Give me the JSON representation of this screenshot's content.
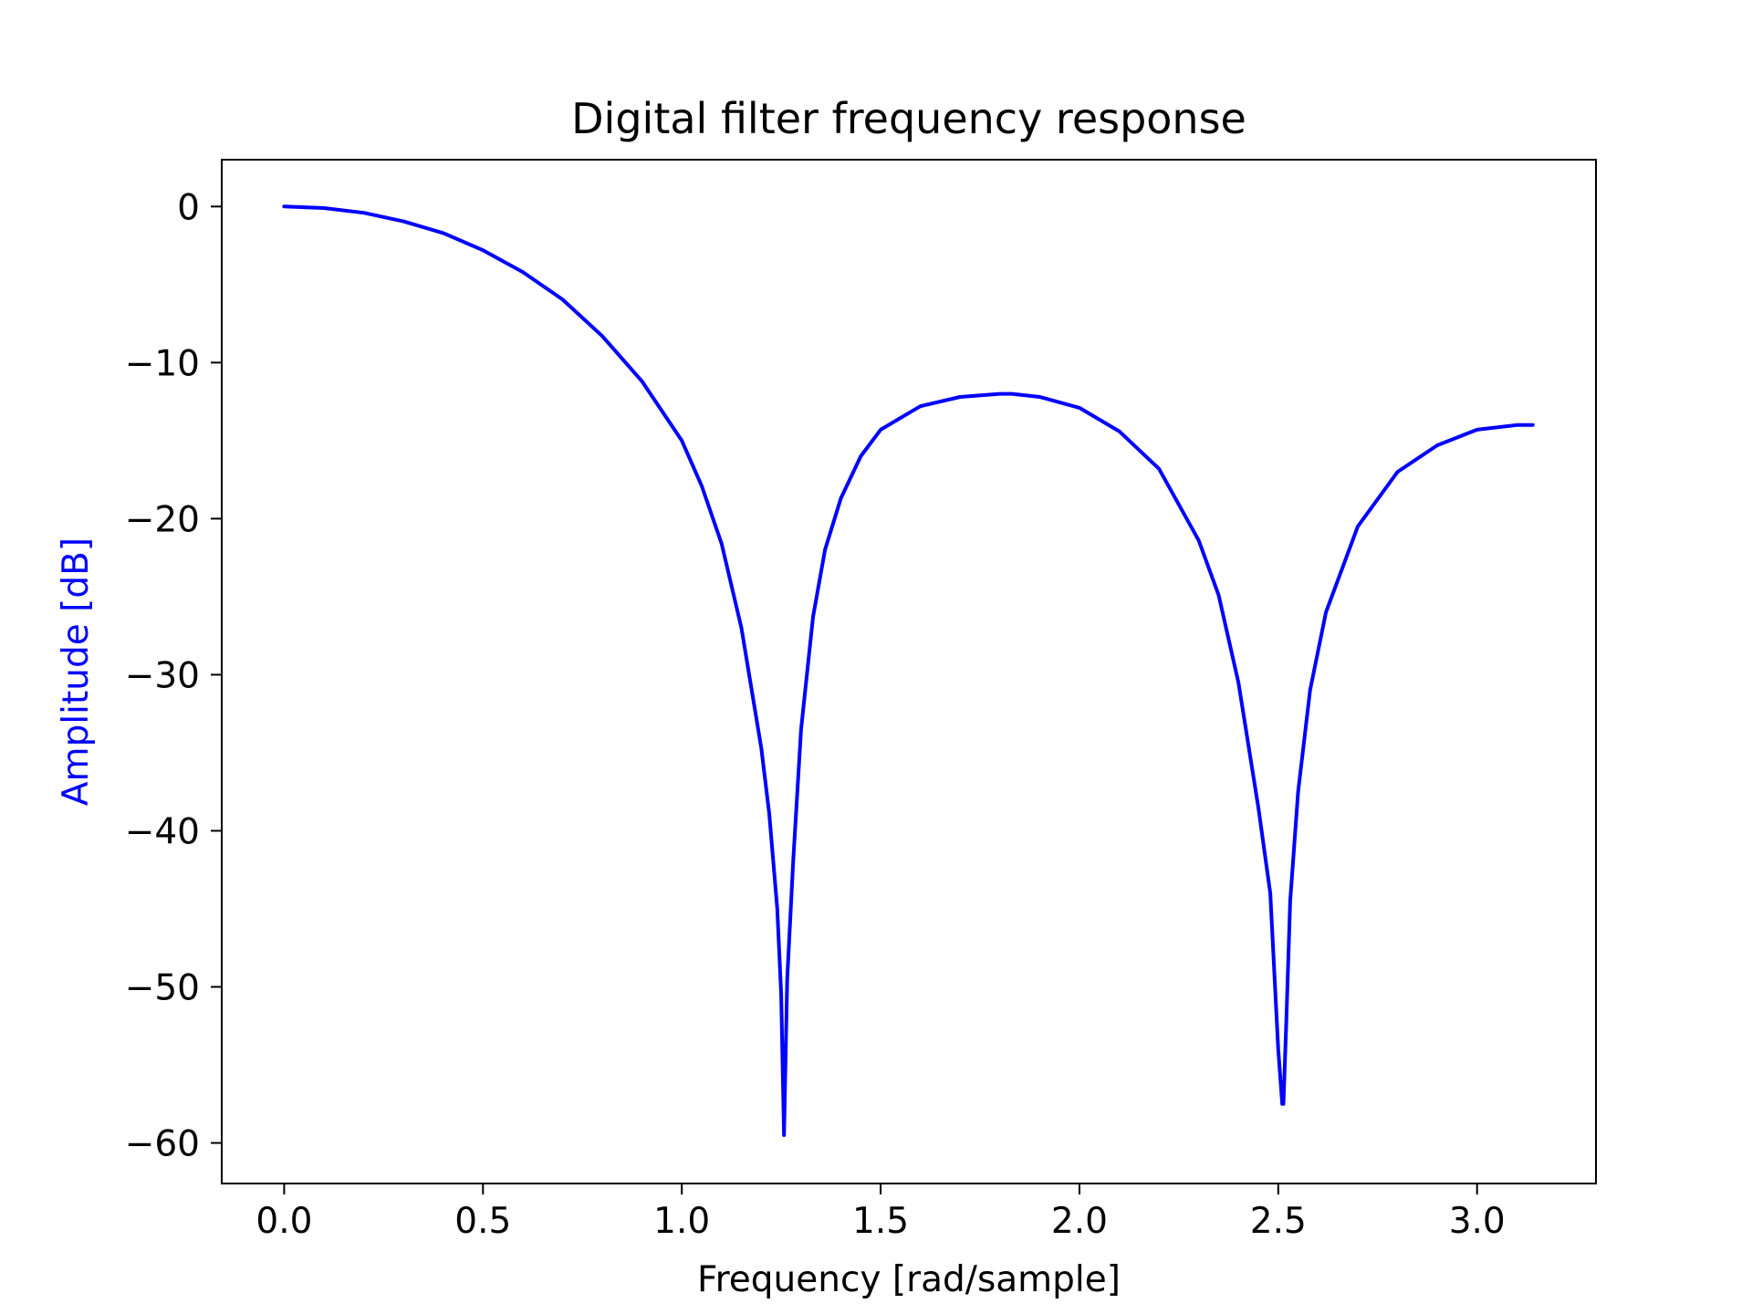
{
  "chart_data": {
    "type": "line",
    "title": "Digital filter frequency response",
    "xlabel": "Frequency [rad/sample]",
    "ylabel": "Amplitude [dB]",
    "ylabel_color": "#0000ff",
    "xlim": [
      -0.157,
      3.299
    ],
    "ylim": [
      -62.6,
      3.0
    ],
    "xticks": [
      0.0,
      0.5,
      1.0,
      1.5,
      2.0,
      2.5,
      3.0
    ],
    "xtick_labels": [
      "0.0",
      "0.5",
      "1.0",
      "1.5",
      "2.0",
      "2.5",
      "3.0"
    ],
    "yticks": [
      0,
      -10,
      -20,
      -30,
      -40,
      -50,
      -60
    ],
    "ytick_labels": [
      "0",
      "−10",
      "−20",
      "−30",
      "−40",
      "−50",
      "−60"
    ],
    "grid": false,
    "series": [
      {
        "color": "#0000ff",
        "x": [
          0.0,
          0.1,
          0.2,
          0.3,
          0.4,
          0.5,
          0.6,
          0.7,
          0.8,
          0.9,
          1.0,
          1.05,
          1.1,
          1.15,
          1.2,
          1.22,
          1.24,
          1.25,
          1.257,
          1.265,
          1.28,
          1.3,
          1.33,
          1.36,
          1.4,
          1.45,
          1.5,
          1.6,
          1.7,
          1.8,
          1.83,
          1.9,
          2.0,
          2.1,
          2.2,
          2.3,
          2.35,
          2.4,
          2.45,
          2.48,
          2.5,
          2.51,
          2.513,
          2.52,
          2.53,
          2.55,
          2.58,
          2.62,
          2.7,
          2.8,
          2.9,
          3.0,
          3.1,
          3.14
        ],
        "y": [
          0.0,
          -0.1,
          -0.4,
          -0.95,
          -1.7,
          -2.8,
          -4.2,
          -5.95,
          -8.3,
          -11.2,
          -15.0,
          -17.9,
          -21.6,
          -27.0,
          -34.7,
          -38.9,
          -45.0,
          -50.5,
          -59.5,
          -49.5,
          -42.0,
          -33.5,
          -26.3,
          -22.0,
          -18.7,
          -16.0,
          -14.3,
          -12.8,
          -12.2,
          -12.0,
          -12.0,
          -12.2,
          -12.9,
          -14.4,
          -16.8,
          -21.4,
          -24.9,
          -30.5,
          -38.5,
          -44.0,
          -54.0,
          -57.5,
          -57.5,
          -52.5,
          -44.5,
          -37.5,
          -31.0,
          -26.0,
          -20.5,
          -17.0,
          -15.3,
          -14.3,
          -14.0,
          -14.0
        ]
      }
    ]
  }
}
